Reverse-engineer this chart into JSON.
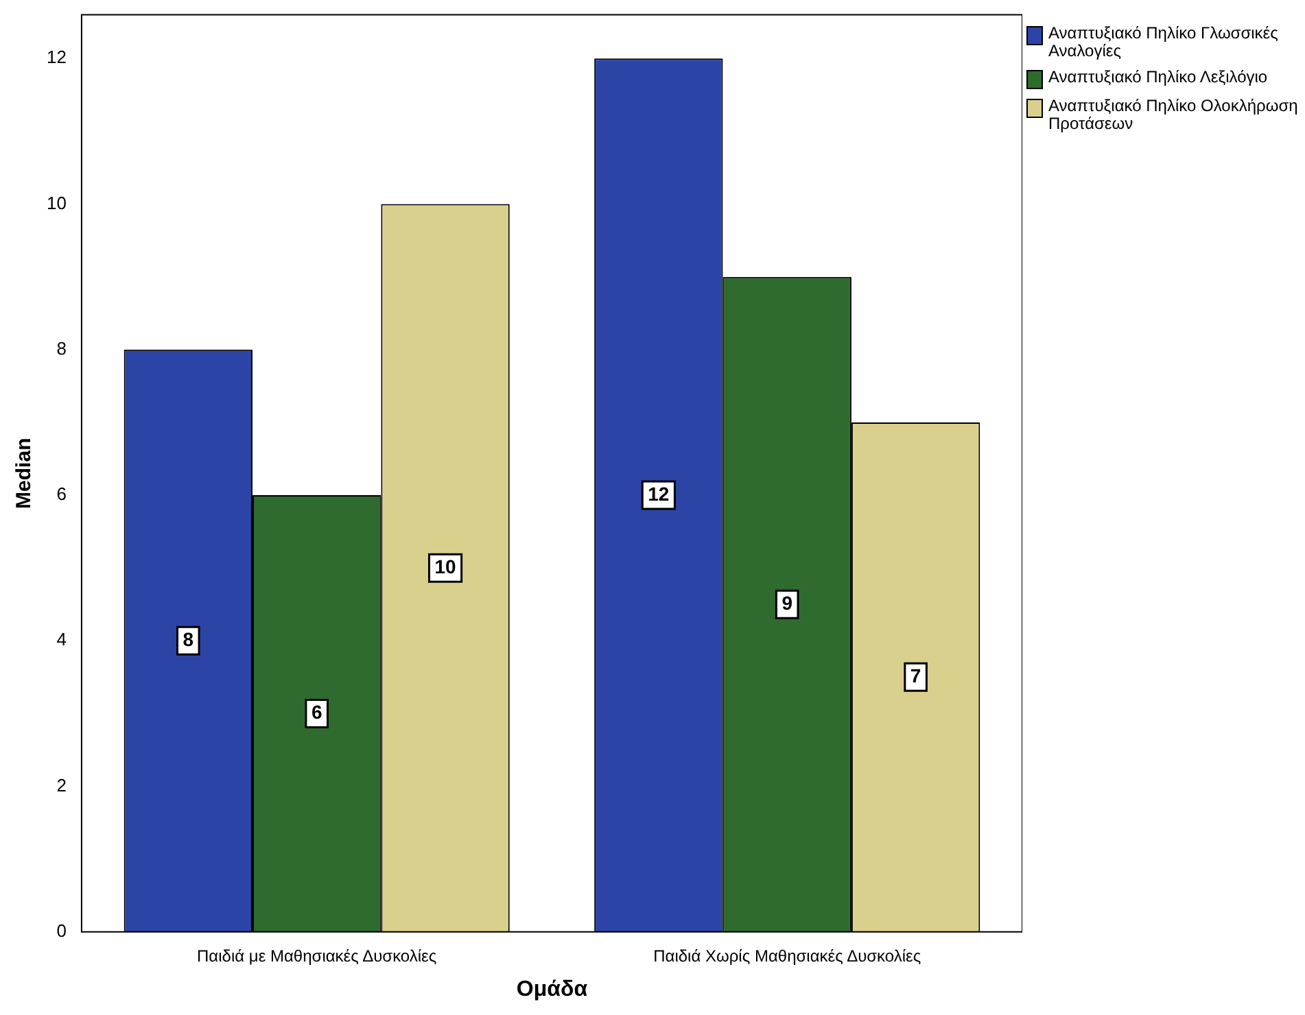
{
  "chart_data": {
    "type": "bar",
    "xlabel": "Ομάδα",
    "ylabel": "Median",
    "categories": [
      "Παιδιά με Μαθησιακές Δυσκολίες",
      "Παιδιά Χωρίς Μαθησιακές Δυσκολίες"
    ],
    "series": [
      {
        "name": "Αναπτυξιακό Πηλίκο Γλωσσικές Αναλογίες",
        "color": "#2b44a6",
        "values": [
          8,
          12
        ]
      },
      {
        "name": "Αναπτυξιακό Πηλίκο Λεξιλόγιο",
        "color": "#2f6b2f",
        "values": [
          6,
          9
        ]
      },
      {
        "name": "Αναπτυξιακό Πηλίκο Ολοκλήρωση Προτάσεων",
        "color": "#d9d08e",
        "values": [
          10,
          7
        ]
      }
    ],
    "ylim": [
      0,
      12.6
    ],
    "yticks": [
      0,
      2,
      4,
      6,
      8,
      10,
      12
    ],
    "grid": false,
    "legend": "top right",
    "data_labels": true
  }
}
